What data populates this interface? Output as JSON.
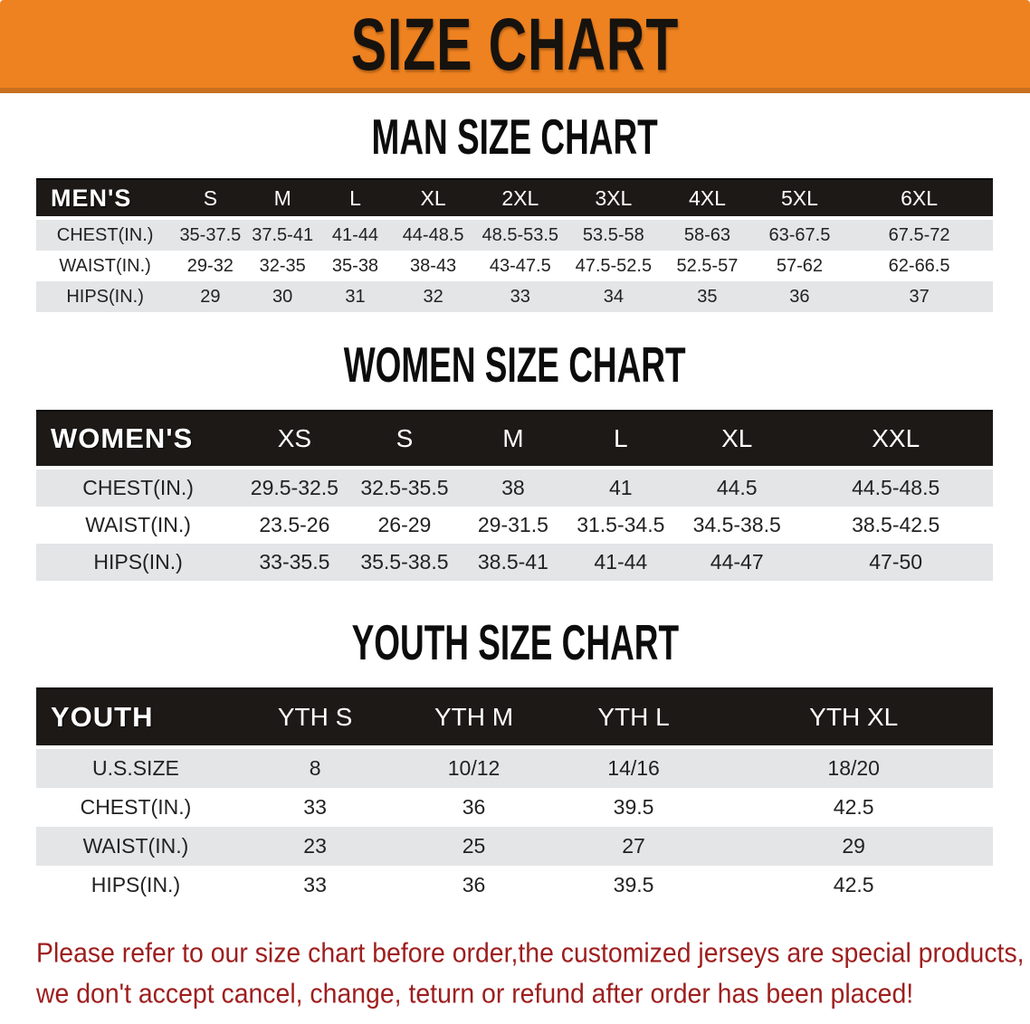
{
  "banner": {
    "title": "SIZE CHART",
    "bg_color": "#ee8220",
    "edge_color": "#c8701f",
    "text_color": "#16120e"
  },
  "colors": {
    "header_bar": "#1d1916",
    "stripe_gray": "#e4e5e7",
    "disclaimer_red": "#9e1e1e"
  },
  "sections": [
    {
      "heading": "MAN SIZE CHART",
      "header_label": "MEN'S",
      "columns": [
        "S",
        "M",
        "L",
        "XL",
        "2XL",
        "3XL",
        "4XL",
        "5XL",
        "6XL"
      ],
      "rows": [
        {
          "label": "CHEST(IN.)",
          "values": [
            "35-37.5",
            "37.5-41",
            "41-44",
            "44-48.5",
            "48.5-53.5",
            "53.5-58",
            "58-63",
            "63-67.5",
            "67.5-72"
          ]
        },
        {
          "label": "WAIST(IN.)",
          "values": [
            "29-32",
            "32-35",
            "35-38",
            "38-43",
            "43-47.5",
            "47.5-52.5",
            "52.5-57",
            "57-62",
            "62-66.5"
          ]
        },
        {
          "label": "HIPS(IN.)",
          "values": [
            "29",
            "30",
            "31",
            "32",
            "33",
            "34",
            "35",
            "36",
            "37"
          ]
        }
      ]
    },
    {
      "heading": "WOMEN SIZE CHART",
      "header_label": "WOMEN'S",
      "columns": [
        "XS",
        "S",
        "M",
        "L",
        "XL",
        "XXL"
      ],
      "rows": [
        {
          "label": "CHEST(IN.)",
          "values": [
            "29.5-32.5",
            "32.5-35.5",
            "38",
            "41",
            "44.5",
            "44.5-48.5"
          ]
        },
        {
          "label": "WAIST(IN.)",
          "values": [
            "23.5-26",
            "26-29",
            "29-31.5",
            "31.5-34.5",
            "34.5-38.5",
            "38.5-42.5"
          ]
        },
        {
          "label": "HIPS(IN.)",
          "values": [
            "33-35.5",
            "35.5-38.5",
            "38.5-41",
            "41-44",
            "44-47",
            "47-50"
          ]
        }
      ]
    },
    {
      "heading": "YOUTH SIZE CHART",
      "header_label": "YOUTH",
      "columns": [
        "YTH S",
        "YTH M",
        "YTH L",
        "YTH XL"
      ],
      "rows": [
        {
          "label": "U.S.SIZE",
          "values": [
            "8",
            "10/12",
            "14/16",
            "18/20"
          ]
        },
        {
          "label": "CHEST(IN.)",
          "values": [
            "33",
            "36",
            "39.5",
            "42.5"
          ]
        },
        {
          "label": "WAIST(IN.)",
          "values": [
            "23",
            "25",
            "27",
            "29"
          ]
        },
        {
          "label": "HIPS(IN.)",
          "values": [
            "33",
            "36",
            "39.5",
            "42.5"
          ]
        }
      ]
    }
  ],
  "disclaimer": {
    "lines": [
      "Please refer to our size chart before order,the customized jerseys are special products,",
      "we don't accept cancel, change, teturn or refund after order has been placed!"
    ]
  }
}
